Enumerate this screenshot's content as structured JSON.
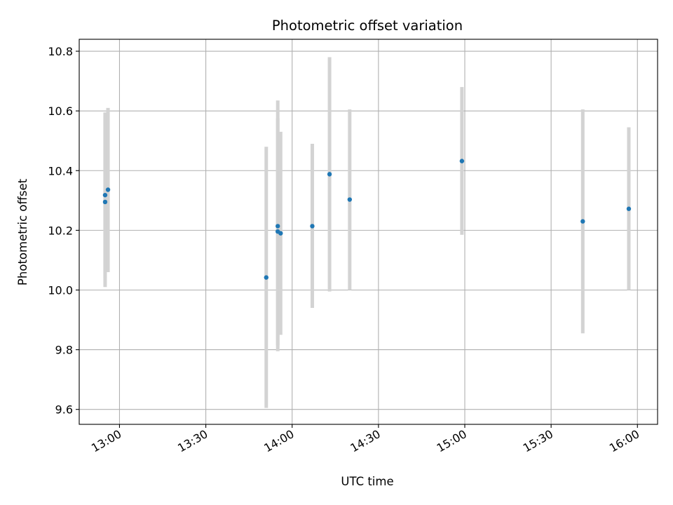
{
  "chart_data": {
    "type": "scatter",
    "title": "Photometric offset variation",
    "xlabel": "UTC time",
    "ylabel": "Photometric offset",
    "grid": true,
    "ylim": [
      9.55,
      10.84
    ],
    "xlim": [
      "12:46",
      "16:07"
    ],
    "colors": {
      "point": "#1f77b4",
      "errorbar": "#d3d3d3",
      "grid": "#b0b0b0"
    },
    "x_ticks": [
      "13:00",
      "13:30",
      "14:00",
      "14:30",
      "15:00",
      "15:30",
      "16:00"
    ],
    "y_ticks": [
      "9.6",
      "9.8",
      "10.0",
      "10.2",
      "10.4",
      "10.6",
      "10.8"
    ],
    "points": [
      {
        "time": "12:55",
        "y": 10.295,
        "lo": 10.01,
        "hi": 10.585
      },
      {
        "time": "12:55",
        "y": 10.318,
        "lo": 10.04,
        "hi": 10.595
      },
      {
        "time": "12:56",
        "y": 10.336,
        "lo": 10.06,
        "hi": 10.61
      },
      {
        "time": "13:51",
        "y": 10.042,
        "lo": 9.605,
        "hi": 10.48
      },
      {
        "time": "13:55",
        "y": 10.214,
        "lo": 9.795,
        "hi": 10.635
      },
      {
        "time": "13:55",
        "y": 10.196,
        "lo": 9.815,
        "hi": 10.575
      },
      {
        "time": "13:56",
        "y": 10.19,
        "lo": 9.85,
        "hi": 10.53
      },
      {
        "time": "14:07",
        "y": 10.214,
        "lo": 9.94,
        "hi": 10.49
      },
      {
        "time": "14:13",
        "y": 10.388,
        "lo": 9.995,
        "hi": 10.78
      },
      {
        "time": "14:20",
        "y": 10.303,
        "lo": 10.0,
        "hi": 10.605
      },
      {
        "time": "14:59",
        "y": 10.432,
        "lo": 10.185,
        "hi": 10.68
      },
      {
        "time": "15:41",
        "y": 10.23,
        "lo": 9.855,
        "hi": 10.605
      },
      {
        "time": "15:57",
        "y": 10.272,
        "lo": 10.0,
        "hi": 10.545
      }
    ]
  }
}
